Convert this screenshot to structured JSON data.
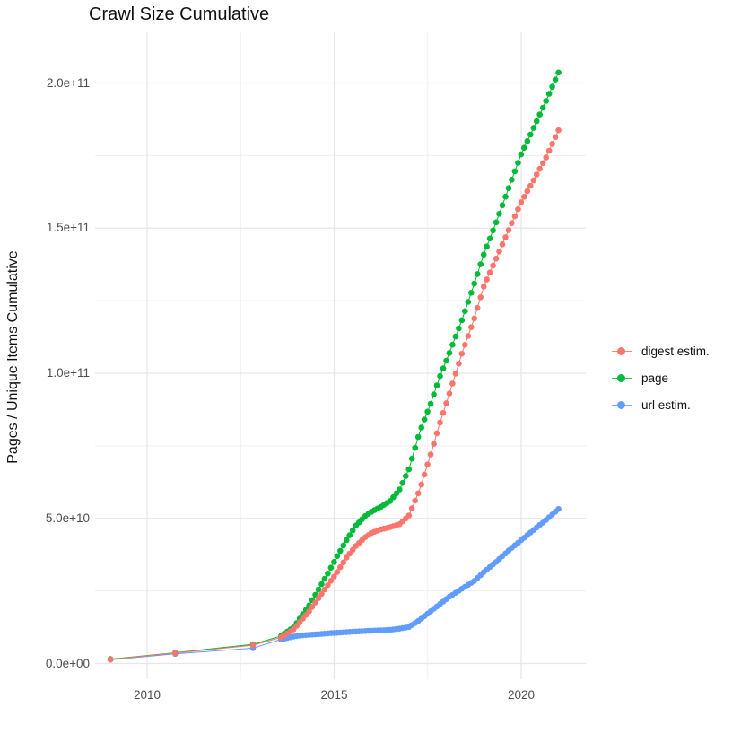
{
  "page": {
    "background": "#ffffff"
  },
  "chart_data": {
    "type": "line",
    "title": "Crawl Size Cumulative",
    "xlabel": "",
    "ylabel": "Pages / Unique Items Cumulative",
    "grid": true,
    "legend_position": "right",
    "point_style": "dot+line",
    "value_unit_note": "point values stored in billions (1e9); y axis shown in scientific notation",
    "x_range": [
      2008.4,
      2021.7
    ],
    "y_range_e9": [
      -10,
      215
    ],
    "x_ticks": [
      {
        "value": 2010,
        "label": "2010"
      },
      {
        "value": 2015,
        "label": "2015"
      },
      {
        "value": 2020,
        "label": "2020"
      }
    ],
    "x_minor_ticks": [
      2012.5,
      2017.5
    ],
    "y_ticks": [
      {
        "value": 0,
        "label": "0.0e+00"
      },
      {
        "value": 50,
        "label": "5.0e+10"
      },
      {
        "value": 100,
        "label": "1.0e+11"
      },
      {
        "value": 150,
        "label": "1.5e+11"
      },
      {
        "value": 200,
        "label": "2.0e+11"
      }
    ],
    "y_minor_ticks": [
      25,
      75,
      125,
      175
    ],
    "colors": {
      "major_grid": "#e6e6e6",
      "minor_grid": "#efefef",
      "tick_text": "#4d4d4d",
      "title_text": "#111111"
    },
    "sampling": {
      "early_dates": [
        2009.02,
        2010.75,
        2012.83
      ],
      "monthly_start": 2013.58,
      "monthly_end": 2021.06,
      "monthly_step_years": 0.083333
    },
    "series": [
      {
        "name": "digest estim.",
        "color": "#F8766D",
        "points_e9": [
          [
            2009.02,
            1.4
          ],
          [
            2010.75,
            3.6
          ],
          [
            2012.83,
            6.3
          ],
          [
            2013.58,
            9.0
          ],
          [
            2013.92,
            11.8
          ],
          [
            2014.08,
            14.2
          ],
          [
            2014.33,
            18.0
          ],
          [
            2014.58,
            22.5
          ],
          [
            2014.83,
            27.0
          ],
          [
            2015.08,
            31.5
          ],
          [
            2015.33,
            36.5
          ],
          [
            2015.58,
            40.5
          ],
          [
            2015.83,
            43.5
          ],
          [
            2016.0,
            45.0
          ],
          [
            2016.25,
            46.2
          ],
          [
            2016.5,
            47.0
          ],
          [
            2016.75,
            48.0
          ],
          [
            2017.0,
            51.0
          ],
          [
            2017.29,
            60.0
          ],
          [
            2017.58,
            72.0
          ],
          [
            2017.83,
            83.0
          ],
          [
            2018.08,
            93.0
          ],
          [
            2018.42,
            107.0
          ],
          [
            2018.75,
            119.0
          ],
          [
            2019.0,
            130.0
          ],
          [
            2019.33,
            139.5
          ],
          [
            2019.67,
            149.5
          ],
          [
            2020.0,
            159.0
          ],
          [
            2020.33,
            166.5
          ],
          [
            2020.67,
            174.5
          ],
          [
            2021.06,
            185.5
          ]
        ]
      },
      {
        "name": "page",
        "color": "#00BA38",
        "points_e9": [
          [
            2009.02,
            1.5
          ],
          [
            2010.75,
            3.7
          ],
          [
            2012.83,
            6.6
          ],
          [
            2013.58,
            9.5
          ],
          [
            2013.92,
            12.5
          ],
          [
            2014.08,
            15.5
          ],
          [
            2014.33,
            20.0
          ],
          [
            2014.58,
            25.5
          ],
          [
            2014.83,
            31.0
          ],
          [
            2015.08,
            37.0
          ],
          [
            2015.33,
            42.5
          ],
          [
            2015.58,
            47.5
          ],
          [
            2015.83,
            50.8
          ],
          [
            2016.0,
            52.3
          ],
          [
            2016.25,
            54.0
          ],
          [
            2016.5,
            56.0
          ],
          [
            2016.75,
            60.0
          ],
          [
            2017.0,
            67.0
          ],
          [
            2017.29,
            80.0
          ],
          [
            2017.58,
            89.5
          ],
          [
            2017.83,
            99.0
          ],
          [
            2018.08,
            107.0
          ],
          [
            2018.42,
            118.5
          ],
          [
            2018.75,
            131.0
          ],
          [
            2019.0,
            141.0
          ],
          [
            2019.33,
            152.0
          ],
          [
            2019.67,
            164.0
          ],
          [
            2020.0,
            175.5
          ],
          [
            2020.33,
            184.5
          ],
          [
            2020.67,
            194.0
          ],
          [
            2021.06,
            205.5
          ]
        ]
      },
      {
        "name": "url estim.",
        "color": "#619CFF",
        "points_e9": [
          [
            2009.02,
            1.3
          ],
          [
            2010.75,
            3.3
          ],
          [
            2012.83,
            5.3
          ],
          [
            2013.58,
            8.3
          ],
          [
            2013.92,
            9.3
          ],
          [
            2014.08,
            9.6
          ],
          [
            2014.33,
            9.9
          ],
          [
            2014.58,
            10.1
          ],
          [
            2014.83,
            10.4
          ],
          [
            2015.08,
            10.6
          ],
          [
            2015.33,
            10.8
          ],
          [
            2015.58,
            11.0
          ],
          [
            2015.83,
            11.2
          ],
          [
            2016.0,
            11.3
          ],
          [
            2016.25,
            11.4
          ],
          [
            2016.5,
            11.6
          ],
          [
            2016.75,
            12.0
          ],
          [
            2017.0,
            12.6
          ],
          [
            2017.29,
            15.0
          ],
          [
            2017.58,
            18.0
          ],
          [
            2017.83,
            20.5
          ],
          [
            2018.08,
            23.0
          ],
          [
            2018.42,
            25.8
          ],
          [
            2018.75,
            28.5
          ],
          [
            2019.0,
            31.5
          ],
          [
            2019.33,
            35.0
          ],
          [
            2019.67,
            39.0
          ],
          [
            2020.0,
            42.5
          ],
          [
            2020.33,
            46.0
          ],
          [
            2020.67,
            49.5
          ],
          [
            2021.06,
            54.0
          ]
        ]
      }
    ]
  }
}
